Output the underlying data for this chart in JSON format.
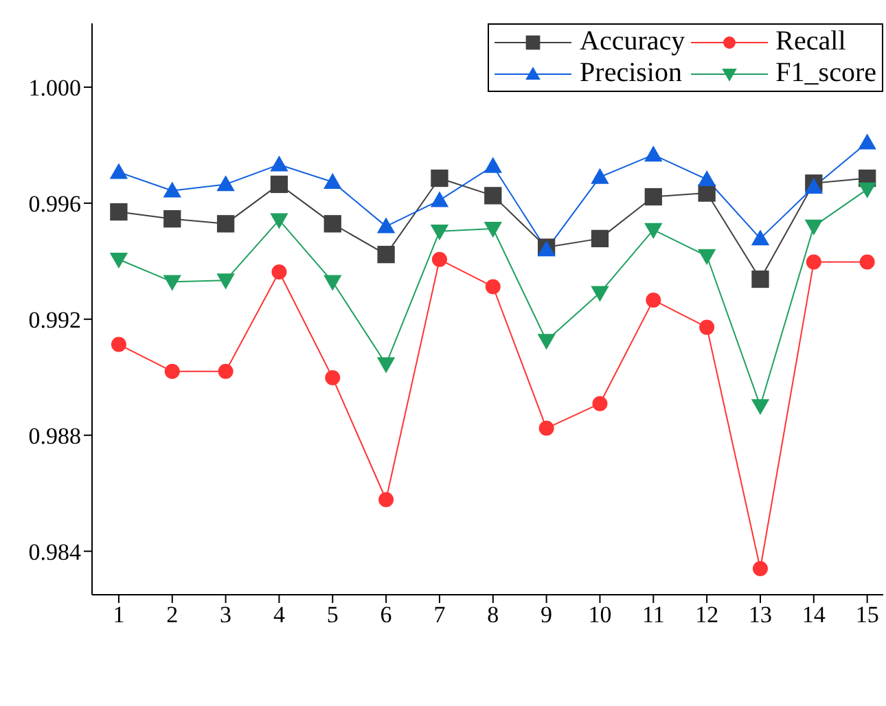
{
  "chart_data": {
    "type": "line",
    "x": [
      1,
      2,
      3,
      4,
      5,
      6,
      7,
      8,
      9,
      10,
      11,
      12,
      13,
      14,
      15
    ],
    "series": [
      {
        "name": "Accuracy",
        "color": "#404040",
        "marker": "square",
        "values": [
          0.9957,
          0.99546,
          0.99529,
          0.99665,
          0.99529,
          0.99423,
          0.99686,
          0.99626,
          0.99448,
          0.99478,
          0.99622,
          0.99635,
          0.99338,
          0.99669,
          0.99686
        ]
      },
      {
        "name": "Recall",
        "color": "#ff3333",
        "marker": "circle",
        "values": [
          0.99113,
          0.9902,
          0.9902,
          0.99363,
          0.98998,
          0.98578,
          0.99406,
          0.99312,
          0.98824,
          0.98909,
          0.99266,
          0.99172,
          0.9834,
          0.99397,
          0.99397
        ]
      },
      {
        "name": "Precision",
        "color": "#1060e0",
        "marker": "triangle",
        "values": [
          0.99707,
          0.99643,
          0.99665,
          0.99733,
          0.99673,
          0.9952,
          0.9961,
          0.99728,
          0.9944,
          0.9969,
          0.99767,
          0.99682,
          0.99478,
          0.99656,
          0.99809
        ]
      },
      {
        "name": "F1_score",
        "color": "#20a060",
        "marker": "triangle-down",
        "values": [
          0.99406,
          0.99329,
          0.99334,
          0.99542,
          0.99329,
          0.99045,
          0.99503,
          0.99512,
          0.99126,
          0.99291,
          0.99508,
          0.99418,
          0.98901,
          0.9952,
          0.99648
        ]
      }
    ],
    "xlim": [
      0.5,
      15.3
    ],
    "xticks": [
      1,
      2,
      3,
      4,
      5,
      6,
      7,
      8,
      9,
      10,
      11,
      12,
      13,
      14,
      15
    ],
    "ylim": [
      0.9825,
      1.0022
    ],
    "yticks": [
      0.984,
      0.988,
      0.992,
      0.996,
      {
        "value": 1,
        "label": "1.000"
      }
    ],
    "legend": "top right",
    "line_style": "solid"
  }
}
